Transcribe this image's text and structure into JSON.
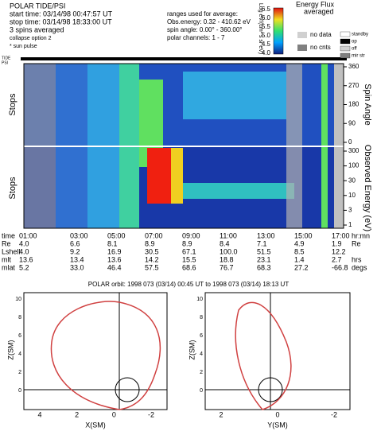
{
  "header": {
    "lines": [
      "POLAR TIDE/PSI",
      "start time: 03/14/98 00:47:57 UT",
      "stop time: 03/14/98 18:33:00 UT",
      "3 spins averaged",
      "collapse option 2",
      "* sun pulse"
    ],
    "ranges": [
      "ranges used for average:",
      "Obs.energy: 0.32 - 410.62 eV",
      "spin angle: 0.00° - 360.00°",
      "polar channels: 1 - 7"
    ]
  },
  "colorbar": {
    "title": "Energy Flux",
    "subtitle": "averaged",
    "unit": "Log eV/(cm² s sr eV)",
    "ticks": [
      "6.5",
      "6.0",
      "5.5",
      "5.0",
      "4.5",
      "4.0"
    ]
  },
  "legend": {
    "left": [
      "no data",
      "no cnts"
    ],
    "right": [
      "standby",
      "op",
      "off",
      "mir str"
    ]
  },
  "instrument_label": [
    "TIDE",
    "PSI"
  ],
  "spectrogram": {
    "left_label": "Stops",
    "spin": {
      "axis_label": "Spin Angle",
      "ticks": [
        "360",
        "270",
        "180",
        "90",
        "0"
      ]
    },
    "energy": {
      "axis_label": "Observed Energy (eV)",
      "ticks": [
        "300",
        "100",
        "30",
        "10",
        "3",
        "1"
      ]
    }
  },
  "table": {
    "rows": [
      [
        "time",
        "01:00",
        "03:00",
        "05:00",
        "07:00",
        "09:00",
        "11:00",
        "13:00",
        "15:00",
        "17:00",
        "hr:mn"
      ],
      [
        "Re",
        "4.0",
        "6.6",
        "8.1",
        "8.9",
        "8.9",
        "8.4",
        "7.1",
        "4.9",
        "1.9",
        "Re"
      ],
      [
        "Lshell",
        "4.0",
        "9.2",
        "16.9",
        "30.5",
        "67.1",
        "100.0",
        "51.5",
        "8.5",
        "12.2",
        ""
      ],
      [
        "mlt",
        "13.6",
        "13.4",
        "13.6",
        "14.2",
        "15.5",
        "18.8",
        "23.1",
        "1.4",
        "2.7",
        "hrs"
      ],
      [
        "mlat",
        "5.2",
        "33.0",
        "46.4",
        "57.5",
        "68.6",
        "76.7",
        "68.3",
        "27.2",
        "-66.8",
        "degs"
      ]
    ]
  },
  "orbit": {
    "title": "POLAR orbit: 1998 073 (03/14) 00:45 UT to 1998 073 (03/14) 18:13 UT",
    "plots": [
      {
        "xlabel": "X(SM)",
        "ylabel": "Z(SM)",
        "xticks": [
          "4",
          "2",
          "0",
          "-2"
        ],
        "yticks": [
          "10",
          "8",
          "6",
          "4",
          "2",
          "0"
        ]
      },
      {
        "xlabel": "Y(SM)",
        "ylabel": "Z(SM)",
        "xticks": [
          "2",
          "0",
          "-2"
        ],
        "yticks": [
          "10",
          "8",
          "6",
          "4",
          "2",
          "0"
        ]
      }
    ]
  }
}
